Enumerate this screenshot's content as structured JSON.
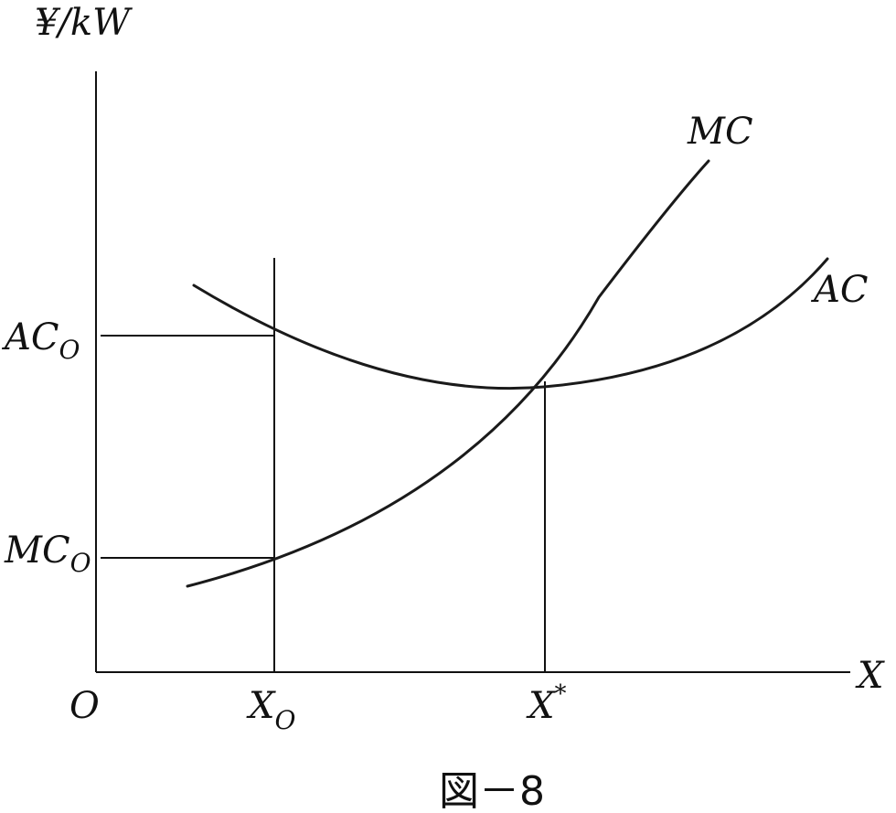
{
  "labels": {
    "y_axis": "¥/kW",
    "x_axis": "X",
    "origin": "O",
    "ac_curve": "AC",
    "mc_curve": "MC",
    "ac0_main": "AC",
    "ac0_sub": "O",
    "mc0_main": "MC",
    "mc0_sub": "O",
    "x0_main": "X",
    "x0_sub": "O",
    "xstar_main": "X",
    "xstar_sup": "*"
  },
  "caption": "図－8"
}
